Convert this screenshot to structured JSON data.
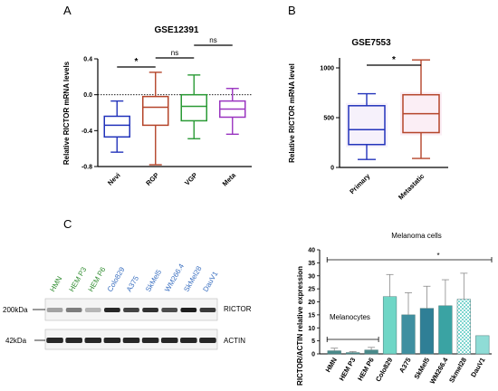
{
  "panels": {
    "A": {
      "letter": "A"
    },
    "B": {
      "letter": "B"
    },
    "C": {
      "letter": "C"
    }
  },
  "chart_data": [
    {
      "panel": "A",
      "type": "box",
      "title": "GSE12391",
      "ylabel": "Relative RICTOR mRNA levels",
      "ylim": [
        -0.8,
        0.4
      ],
      "yticks": [
        -0.8,
        -0.4,
        0.0,
        0.4
      ],
      "reference_line": 0.0,
      "categories": [
        "Nevi",
        "RGP",
        "VGP",
        "Meta"
      ],
      "colors": [
        "#2233bb",
        "#b5452a",
        "#2a9a35",
        "#9a35c0"
      ],
      "boxes": [
        {
          "min": -0.64,
          "q1": -0.47,
          "median": -0.34,
          "q3": -0.24,
          "max": -0.07
        },
        {
          "min": -0.78,
          "q1": -0.34,
          "median": -0.14,
          "q3": -0.02,
          "max": 0.25
        },
        {
          "min": -0.49,
          "q1": -0.29,
          "median": -0.13,
          "q3": 0.0,
          "max": 0.22
        },
        {
          "min": -0.44,
          "q1": -0.25,
          "median": -0.16,
          "q3": -0.07,
          "max": 0.07
        }
      ],
      "comparisons": [
        {
          "from": "Nevi",
          "to": "RGP",
          "label": "*"
        },
        {
          "from": "RGP",
          "to": "VGP",
          "label": "ns"
        },
        {
          "from": "VGP",
          "to": "Meta",
          "label": "ns"
        }
      ]
    },
    {
      "panel": "B",
      "type": "box",
      "title": "GSE7553",
      "ylabel": "Relative RICTOR mRNA level",
      "ylim": [
        0,
        1100
      ],
      "yticks": [
        0,
        500,
        1000
      ],
      "categories": [
        "Primary",
        "Metastatic"
      ],
      "colors": [
        "#2233bb",
        "#b5452a"
      ],
      "boxes": [
        {
          "min": 80,
          "q1": 230,
          "median": 380,
          "q3": 620,
          "max": 740
        },
        {
          "min": 90,
          "q1": 350,
          "median": 540,
          "q3": 730,
          "max": 1080
        }
      ],
      "comparisons": [
        {
          "from": "Primary",
          "to": "Metastatic",
          "label": "*"
        }
      ]
    },
    {
      "panel": "C",
      "type": "bar",
      "ylabel": "RICTOR/ACTIN relative expression",
      "ylim": [
        0,
        40
      ],
      "yticks": [
        0,
        5,
        10,
        15,
        20,
        25,
        30,
        35,
        40
      ],
      "categories": [
        "HMN",
        "HEM P3",
        "HEM P6",
        "Colo829",
        "A375",
        "SkMel5",
        "WM266.4",
        "Skmel28",
        "DauV1"
      ],
      "values": [
        1.2,
        0.5,
        1.5,
        22,
        15,
        17.5,
        18.5,
        21,
        7
      ],
      "errors": [
        1.0,
        0.4,
        1.0,
        8.5,
        8.5,
        8.5,
        10,
        10,
        0
      ],
      "fills": [
        "#4a8a8a",
        "#4a8a8a",
        "#4a8a8a",
        "#6fd6c6",
        "#3f8fa0",
        "#2f7f96",
        "#3aa3a3",
        "pattern",
        "#8fdcd6"
      ],
      "annotations": [
        {
          "text": "Melanocytes"
        },
        {
          "text": "Melanoma cells"
        },
        {
          "text": "*"
        }
      ]
    }
  ],
  "western_blot": {
    "lanes": [
      {
        "label": "HMN",
        "color": "#2e8b2e"
      },
      {
        "label": "HEM P3",
        "color": "#2e8b2e"
      },
      {
        "label": "HEM P6",
        "color": "#2e8b2e"
      },
      {
        "label": "Colo829",
        "color": "#3a6fc0"
      },
      {
        "label": "A375",
        "color": "#3a6fc0"
      },
      {
        "label": "SkMel5",
        "color": "#3a6fc0"
      },
      {
        "label": "WM266.4",
        "color": "#3a6fc0"
      },
      {
        "label": "SkMel28",
        "color": "#3a6fc0"
      },
      {
        "label": "DauV1",
        "color": "#3a6fc0"
      }
    ],
    "markers": [
      "200kDa",
      "42kDa"
    ],
    "bands": [
      "RICTOR",
      "ACTIN"
    ],
    "rictor_intensity": [
      0.25,
      0.45,
      0.15,
      0.9,
      0.75,
      0.85,
      0.7,
      0.95,
      0.8
    ],
    "actin_intensity": [
      0.9,
      0.9,
      0.9,
      0.9,
      0.9,
      0.9,
      0.9,
      0.9,
      0.9
    ]
  }
}
